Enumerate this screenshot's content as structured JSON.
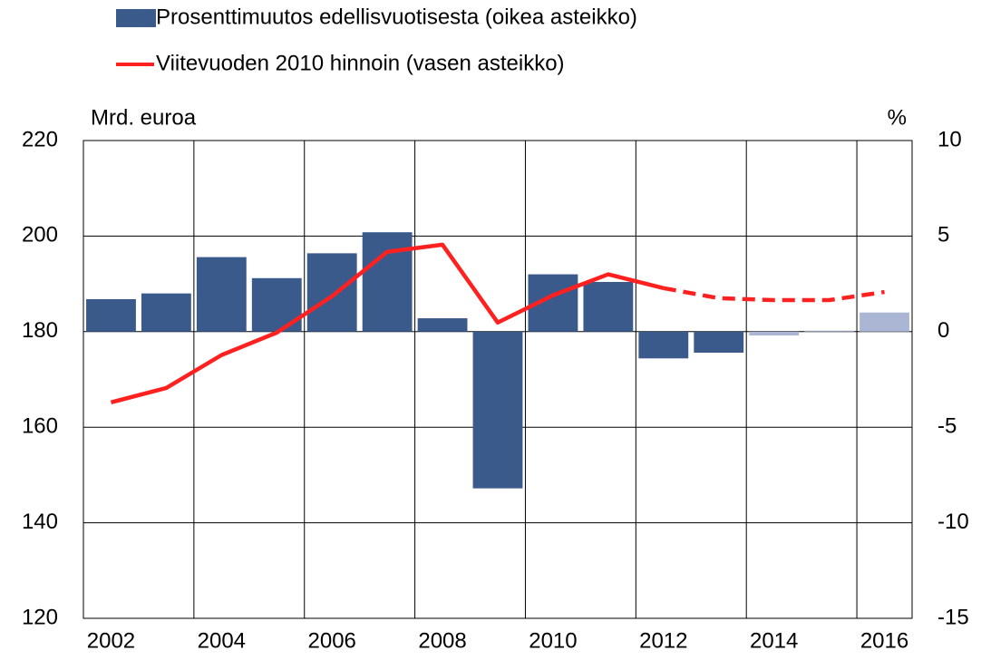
{
  "chart_data": {
    "type": "bar_line",
    "categories": [
      "2002",
      null,
      "2004",
      null,
      "2006",
      null,
      "2008",
      null,
      "2010",
      null,
      "2012",
      null,
      "2014",
      null,
      "2016"
    ],
    "series": [
      {
        "name": "Prosenttimuutos edellisvuotisesta (oikea asteikko)",
        "type": "bar",
        "axis": "y2",
        "color": "#3b5a8c",
        "colors": [
          "#3b5a8c",
          "#3b5a8c",
          "#3b5a8c",
          "#3b5a8c",
          "#3b5a8c",
          "#3b5a8c",
          "#3b5a8c",
          "#3b5a8c",
          "#3b5a8c",
          "#3b5a8c",
          "#3b5a8c",
          "#3b5a8c",
          "#aab6d3",
          "#aab6d3",
          "#aab6d3"
        ],
        "values": [
          1.7,
          2.0,
          3.9,
          2.8,
          4.1,
          5.2,
          0.7,
          -8.2,
          3.0,
          2.6,
          -1.4,
          -1.1,
          -0.2,
          0.05,
          1.0
        ]
      },
      {
        "name": "Viitevuoden 2010 hinnoin (vasen asteikko)",
        "type": "line",
        "axis": "y",
        "color": "#ff2020",
        "dashed": [
          false,
          false,
          false,
          false,
          false,
          false,
          false,
          false,
          false,
          false,
          false,
          true,
          true,
          true,
          true
        ],
        "values": [
          165.2,
          168.2,
          175.1,
          179.8,
          187.4,
          196.7,
          198.2,
          181.9,
          187.6,
          192.0,
          189.1,
          187.0,
          186.6,
          186.6,
          188.3
        ]
      }
    ],
    "ylabel": "Mrd. euroa",
    "y2label": "%",
    "ylim": [
      120,
      220
    ],
    "yticks": [
      120,
      140,
      160,
      180,
      200,
      220
    ],
    "y2lim": [
      -15,
      10
    ],
    "y2ticks": [
      -15,
      -10,
      -5,
      0,
      5,
      10
    ],
    "grid": true
  }
}
